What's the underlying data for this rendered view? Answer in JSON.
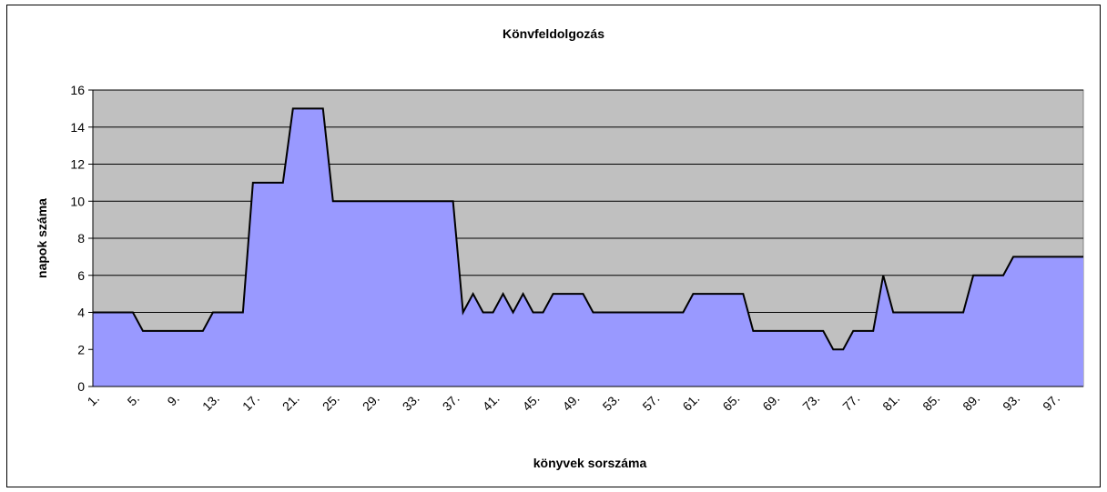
{
  "chart_data": {
    "type": "area",
    "title": "Könvfeldolgozás",
    "x_label": "könyvek  sorszáma",
    "y_label": "napok száma",
    "categories": [
      "1.",
      null,
      null,
      null,
      "5.",
      null,
      null,
      null,
      "9.",
      null,
      null,
      null,
      "13.",
      null,
      null,
      null,
      "17.",
      null,
      null,
      null,
      "21.",
      null,
      null,
      null,
      "25.",
      null,
      null,
      null,
      "29.",
      null,
      null,
      null,
      "33.",
      null,
      null,
      null,
      "37.",
      null,
      null,
      null,
      "41.",
      null,
      null,
      null,
      "45.",
      null,
      null,
      null,
      "49.",
      null,
      null,
      null,
      "53.",
      null,
      null,
      null,
      "57.",
      null,
      null,
      null,
      "61.",
      null,
      null,
      null,
      "65.",
      null,
      null,
      null,
      "69.",
      null,
      null,
      null,
      "73.",
      null,
      null,
      null,
      "77.",
      null,
      null,
      null,
      "81.",
      null,
      null,
      null,
      "85.",
      null,
      null,
      null,
      "89.",
      null,
      null,
      null,
      "93.",
      null,
      null,
      null,
      "97.",
      null,
      null,
      null
    ],
    "values": [
      4,
      4,
      4,
      4,
      4,
      3,
      3,
      3,
      3,
      3,
      3,
      3,
      4,
      4,
      4,
      4,
      11,
      11,
      11,
      11,
      15,
      15,
      15,
      15,
      10,
      10,
      10,
      10,
      10,
      10,
      10,
      10,
      10,
      10,
      10,
      10,
      10,
      4,
      5,
      4,
      4,
      5,
      4,
      5,
      4,
      4,
      5,
      5,
      5,
      5,
      4,
      4,
      4,
      4,
      4,
      4,
      4,
      4,
      4,
      4,
      5,
      5,
      5,
      5,
      5,
      5,
      3,
      3,
      3,
      3,
      3,
      3,
      3,
      3,
      2,
      2,
      3,
      3,
      3,
      6,
      4,
      4,
      4,
      4,
      4,
      4,
      4,
      4,
      6,
      6,
      6,
      6,
      7,
      7,
      7,
      7,
      7,
      7,
      7,
      7
    ],
    "color": "#9999ff",
    "plot_background": "#c0c0c0",
    "ylim": [
      0,
      16
    ],
    "yticks": [
      0,
      2,
      4,
      6,
      8,
      10,
      12,
      14,
      16
    ],
    "grid": true
  }
}
